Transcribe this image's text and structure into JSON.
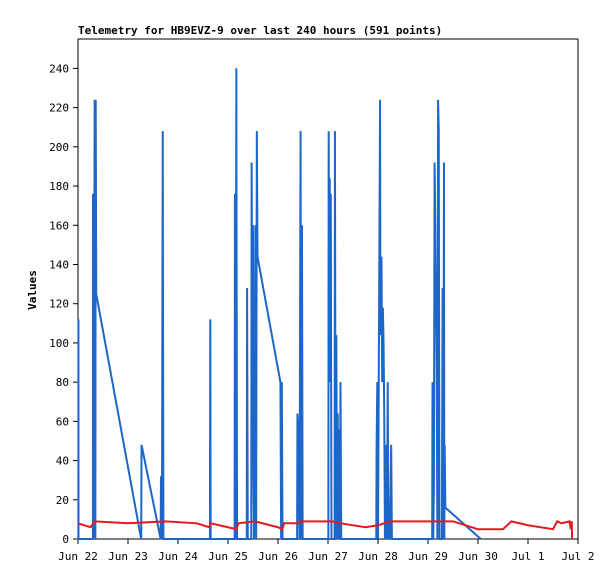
{
  "chart_data": {
    "type": "line",
    "title": "Telemetry for HB9EVZ-9 over last 240 hours (591 points)",
    "ylabel": "Values",
    "xlabel": "",
    "ylim": [
      0,
      255
    ],
    "xlim": [
      "2025-06-22T00:00",
      "2025-07-02T00:00"
    ],
    "grid": false,
    "x_ticks": [
      "Jun 22",
      "Jun 23",
      "Jun 24",
      "Jun 25",
      "Jun 26",
      "Jun 27",
      "Jun 28",
      "Jun 29",
      "Jun 30",
      "Jul 1",
      "Jul 2"
    ],
    "y_ticks": [
      "0",
      "20",
      "40",
      "60",
      "80",
      "100",
      "120",
      "140",
      "160",
      "180",
      "200",
      "220",
      "240"
    ],
    "series": [
      {
        "color": "#1e66c8",
        "points": [
          [
            "2025-06-22T00:10",
            0
          ],
          [
            "2025-06-22T00:12",
            112
          ],
          [
            "2025-06-22T00:14",
            0
          ],
          [
            "2025-06-22T07:10",
            0
          ],
          [
            "2025-06-22T07:12",
            176
          ],
          [
            "2025-06-22T07:30",
            0
          ],
          [
            "2025-06-22T08:00",
            224
          ],
          [
            "2025-06-22T08:20",
            0
          ],
          [
            "2025-06-22T08:30",
            224
          ],
          [
            "2025-06-22T08:45",
            125
          ],
          [
            "2025-06-23T06:20",
            0
          ],
          [
            "2025-06-23T06:30",
            48
          ],
          [
            "2025-06-23T15:40",
            0
          ],
          [
            "2025-06-23T15:50",
            32
          ],
          [
            "2025-06-23T16:00",
            0
          ],
          [
            "2025-06-23T16:20",
            16
          ],
          [
            "2025-06-23T16:40",
            208
          ],
          [
            "2025-06-23T17:00",
            0
          ],
          [
            "2025-06-24T15:20",
            0
          ],
          [
            "2025-06-24T15:30",
            112
          ],
          [
            "2025-06-24T15:40",
            0
          ],
          [
            "2025-06-25T03:10",
            0
          ],
          [
            "2025-06-25T03:20",
            176
          ],
          [
            "2025-06-25T03:40",
            0
          ],
          [
            "2025-06-25T04:00",
            240
          ],
          [
            "2025-06-25T04:20",
            0
          ],
          [
            "2025-06-25T09:00",
            0
          ],
          [
            "2025-06-25T09:10",
            128
          ],
          [
            "2025-06-25T09:20",
            64
          ],
          [
            "2025-06-25T09:30",
            0
          ],
          [
            "2025-06-25T11:10",
            0
          ],
          [
            "2025-06-25T11:20",
            192
          ],
          [
            "2025-06-25T11:40",
            96
          ],
          [
            "2025-06-25T12:00",
            160
          ],
          [
            "2025-06-25T12:10",
            32
          ],
          [
            "2025-06-25T12:30",
            0
          ],
          [
            "2025-06-25T13:10",
            160
          ],
          [
            "2025-06-25T13:30",
            0
          ],
          [
            "2025-06-25T13:50",
            208
          ],
          [
            "2025-06-25T14:10",
            144
          ],
          [
            "2025-06-26T01:10",
            80
          ],
          [
            "2025-06-26T01:30",
            0
          ],
          [
            "2025-06-26T01:50",
            80
          ],
          [
            "2025-06-26T02:10",
            0
          ],
          [
            "2025-06-26T09:10",
            0
          ],
          [
            "2025-06-26T09:20",
            64
          ],
          [
            "2025-06-26T09:40",
            56
          ],
          [
            "2025-06-26T10:00",
            24
          ],
          [
            "2025-06-26T10:20",
            0
          ],
          [
            "2025-06-26T10:50",
            208
          ],
          [
            "2025-06-26T11:10",
            0
          ],
          [
            "2025-06-26T11:30",
            160
          ],
          [
            "2025-06-26T11:50",
            0
          ],
          [
            "2025-06-27T00:10",
            0
          ],
          [
            "2025-06-27T00:20",
            208
          ],
          [
            "2025-06-27T00:40",
            80
          ],
          [
            "2025-06-27T00:50",
            184
          ],
          [
            "2025-06-27T01:00",
            128
          ],
          [
            "2025-06-27T01:20",
            176
          ],
          [
            "2025-06-27T01:40",
            0
          ],
          [
            "2025-06-27T03:10",
            0
          ],
          [
            "2025-06-27T03:20",
            208
          ],
          [
            "2025-06-27T03:40",
            0
          ],
          [
            "2025-06-27T04:00",
            104
          ],
          [
            "2025-06-27T04:20",
            0
          ],
          [
            "2025-06-27T04:40",
            64
          ],
          [
            "2025-06-27T05:00",
            0
          ],
          [
            "2025-06-27T05:20",
            56
          ],
          [
            "2025-06-27T05:40",
            0
          ],
          [
            "2025-06-27T06:00",
            80
          ],
          [
            "2025-06-27T06:20",
            0
          ],
          [
            "2025-06-27T23:10",
            0
          ],
          [
            "2025-06-27T23:20",
            48
          ],
          [
            "2025-06-27T23:40",
            80
          ],
          [
            "2025-06-28T00:00",
            0
          ],
          [
            "2025-06-28T01:00",
            224
          ],
          [
            "2025-06-28T01:10",
            104
          ],
          [
            "2025-06-28T01:20",
            112
          ],
          [
            "2025-06-28T01:40",
            144
          ],
          [
            "2025-06-28T02:00",
            80
          ],
          [
            "2025-06-28T02:20",
            118
          ],
          [
            "2025-06-28T02:40",
            100
          ],
          [
            "2025-06-28T03:00",
            64
          ],
          [
            "2025-06-28T03:20",
            0
          ],
          [
            "2025-06-28T04:00",
            48
          ],
          [
            "2025-06-28T04:20",
            0
          ],
          [
            "2025-06-28T04:40",
            80
          ],
          [
            "2025-06-28T05:00",
            0
          ],
          [
            "2025-06-28T05:20",
            14
          ],
          [
            "2025-06-28T05:40",
            0
          ],
          [
            "2025-06-28T06:20",
            48
          ],
          [
            "2025-06-28T06:40",
            0
          ],
          [
            "2025-06-29T02:00",
            0
          ],
          [
            "2025-06-29T02:10",
            80
          ],
          [
            "2025-06-29T02:30",
            0
          ],
          [
            "2025-06-29T02:50",
            28
          ],
          [
            "2025-06-29T03:10",
            192
          ],
          [
            "2025-06-29T03:30",
            160
          ],
          [
            "2025-06-29T03:50",
            122
          ],
          [
            "2025-06-29T04:10",
            88
          ],
          [
            "2025-06-29T04:30",
            0
          ],
          [
            "2025-06-29T04:50",
            224
          ],
          [
            "2025-06-29T05:10",
            208
          ],
          [
            "2025-06-29T05:30",
            0
          ],
          [
            "2025-06-29T06:40",
            0
          ],
          [
            "2025-06-29T07:00",
            128
          ],
          [
            "2025-06-29T07:20",
            0
          ],
          [
            "2025-06-29T07:40",
            192
          ],
          [
            "2025-06-29T07:50",
            0
          ],
          [
            "2025-06-29T08:00",
            48
          ],
          [
            "2025-06-29T08:20",
            16
          ],
          [
            "2025-06-30T01:20",
            0
          ]
        ]
      },
      {
        "color": "#e41a1c",
        "points": [
          [
            "2025-06-22T00:00",
            8
          ],
          [
            "2025-06-22T06:00",
            6
          ],
          [
            "2025-06-22T08:00",
            9
          ],
          [
            "2025-06-23T00:00",
            8
          ],
          [
            "2025-06-23T18:00",
            9
          ],
          [
            "2025-06-24T09:00",
            8
          ],
          [
            "2025-06-24T15:00",
            6
          ],
          [
            "2025-06-24T15:40",
            8
          ],
          [
            "2025-06-25T00:00",
            6
          ],
          [
            "2025-06-25T04:00",
            5
          ],
          [
            "2025-06-25T05:00",
            8
          ],
          [
            "2025-06-25T13:00",
            9
          ],
          [
            "2025-06-26T00:00",
            6
          ],
          [
            "2025-06-26T02:00",
            5
          ],
          [
            "2025-06-26T03:00",
            8
          ],
          [
            "2025-06-26T10:00",
            8
          ],
          [
            "2025-06-26T11:00",
            9
          ],
          [
            "2025-06-26T12:00",
            9
          ],
          [
            "2025-06-27T02:00",
            9
          ],
          [
            "2025-06-27T06:00",
            8
          ],
          [
            "2025-06-27T18:00",
            6
          ],
          [
            "2025-06-28T00:00",
            7
          ],
          [
            "2025-06-28T06:00",
            9
          ],
          [
            "2025-06-29T12:00",
            9
          ],
          [
            "2025-06-30T00:00",
            5
          ],
          [
            "2025-06-30T12:00",
            5
          ],
          [
            "2025-06-30T16:00",
            9
          ],
          [
            "2025-07-01T00:00",
            7
          ],
          [
            "2025-07-01T12:00",
            5
          ],
          [
            "2025-07-01T14:00",
            9
          ],
          [
            "2025-07-01T16:00",
            8
          ],
          [
            "2025-07-01T20:00",
            9
          ],
          [
            "2025-07-01T20:30",
            5
          ],
          [
            "2025-07-01T21:00",
            9
          ],
          [
            "2025-07-01T21:10",
            0
          ]
        ]
      }
    ]
  }
}
